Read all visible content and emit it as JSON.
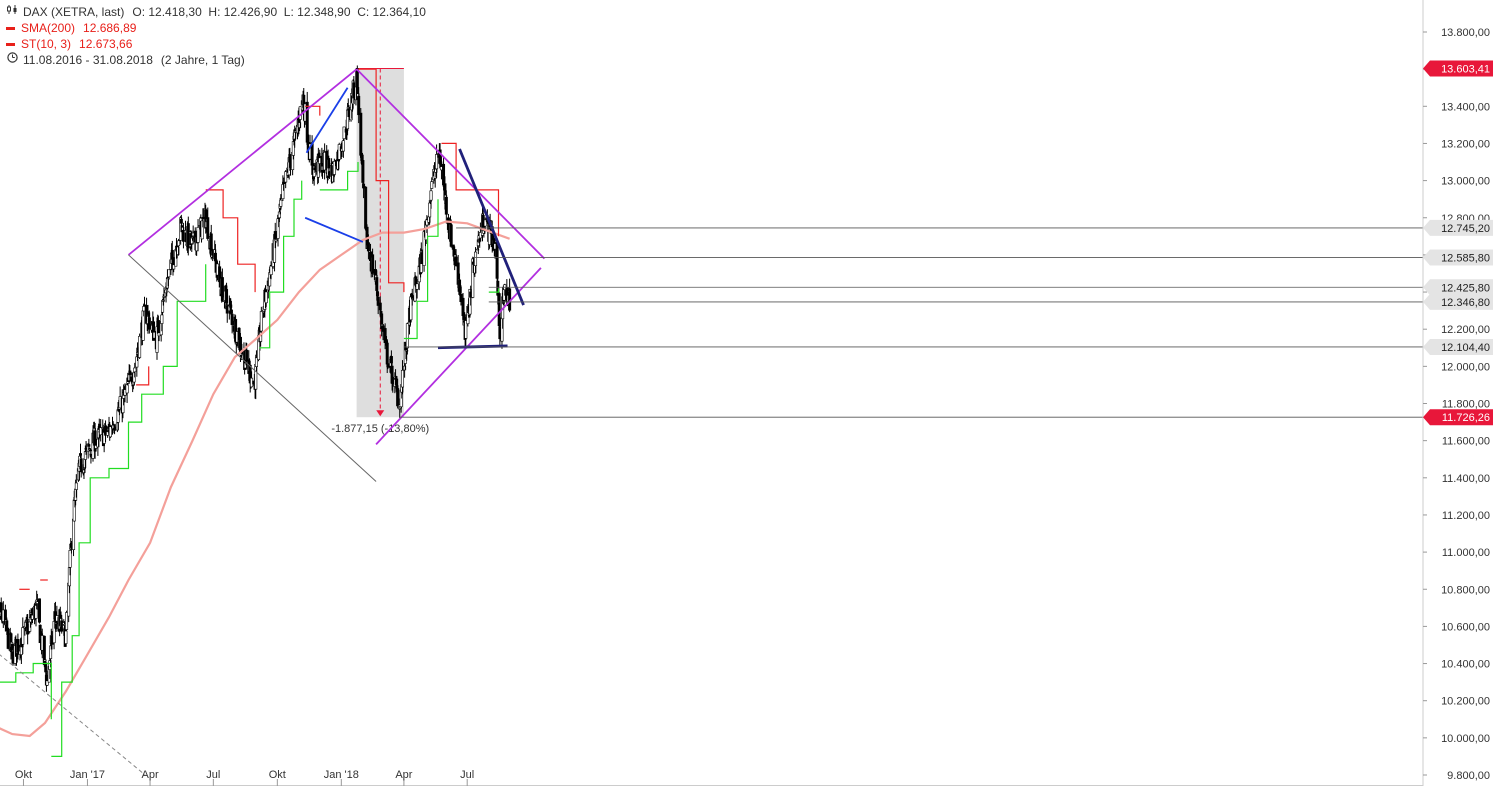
{
  "legend": {
    "title_icon": "candlestick-icon",
    "title": "DAX (XETRA, last)",
    "ohlc": "O: 12.418,30  H: 12.426,90  L: 12.348,90  C: 12.364,10",
    "sma_label": "SMA(200)",
    "sma_value": "12.686,89",
    "st_label": "ST(10, 3)",
    "st_value": "12.673,66",
    "range_icon": "clock-icon",
    "range": "11.08.2016 - 31.08.2018",
    "range_detail": "(2 Jahre, 1 Tag)"
  },
  "colors": {
    "sma": "#f4a09a",
    "st_up": "#22dd22",
    "st_down": "#ee2222",
    "candle": "#000000",
    "triangle": "#b22fe0",
    "dark_line": "#20207a",
    "blue_line": "#1a3fe8",
    "measure_box": "#d8d8d8",
    "tag_red": "#e8173a",
    "tag_gray": "#e4e4e4"
  },
  "measurement_label": "-1.877,15 (-13,80%)",
  "chart_data": {
    "type": "candlestick",
    "title": "DAX (XETRA, last)",
    "xlabel": "",
    "ylabel": "",
    "ylim": [
      9800,
      13800
    ],
    "y_ticks": [
      "13.800,00",
      "13.600,00",
      "13.400,00",
      "13.200,00",
      "13.000,00",
      "12.800,00",
      "12.600,00",
      "12.400,00",
      "12.200,00",
      "12.000,00",
      "11.800,00",
      "11.600,00",
      "11.400,00",
      "11.200,00",
      "11.000,00",
      "10.800,00",
      "10.600,00",
      "10.400,00",
      "10.200,00",
      "10.000,00",
      "9.800,00"
    ],
    "y_tick_values": [
      13800,
      13600,
      13400,
      13200,
      13000,
      12800,
      12600,
      12400,
      12200,
      12000,
      11800,
      11600,
      11400,
      11200,
      11000,
      10800,
      10600,
      10400,
      10200,
      10000,
      9800
    ],
    "x_ticks": [
      "Okt",
      "Jan '17",
      "Apr",
      "Jul",
      "Okt",
      "Jan '18",
      "Apr",
      "Jul"
    ],
    "x_tick_dates": [
      "2016-10-01",
      "2017-01-01",
      "2017-04-01",
      "2017-07-01",
      "2017-10-01",
      "2018-01-01",
      "2018-04-01",
      "2018-07-01"
    ],
    "date_range": [
      "2016-08-11",
      "2018-08-31"
    ],
    "price_path": [
      [
        "2016-08-11",
        10700
      ],
      [
        "2016-09-01",
        10650
      ],
      [
        "2016-09-15",
        10450
      ],
      [
        "2016-10-01",
        10550
      ],
      [
        "2016-10-20",
        10700
      ],
      [
        "2016-11-04",
        10300
      ],
      [
        "2016-11-15",
        10650
      ],
      [
        "2016-12-01",
        10550
      ],
      [
        "2016-12-10",
        11150
      ],
      [
        "2016-12-20",
        11450
      ],
      [
        "2017-01-10",
        11600
      ],
      [
        "2017-02-01",
        11650
      ],
      [
        "2017-02-20",
        11800
      ],
      [
        "2017-03-10",
        12000
      ],
      [
        "2017-03-25",
        12300
      ],
      [
        "2017-04-10",
        12150
      ],
      [
        "2017-04-25",
        12450
      ],
      [
        "2017-05-15",
        12750
      ],
      [
        "2017-06-01",
        12650
      ],
      [
        "2017-06-20",
        12800
      ],
      [
        "2017-07-10",
        12450
      ],
      [
        "2017-07-25",
        12300
      ],
      [
        "2017-08-10",
        12100
      ],
      [
        "2017-08-29",
        11900
      ],
      [
        "2017-09-10",
        12300
      ],
      [
        "2017-09-25",
        12600
      ],
      [
        "2017-10-10",
        12950
      ],
      [
        "2017-10-25",
        13200
      ],
      [
        "2017-11-07",
        13450
      ],
      [
        "2017-11-20",
        13050
      ],
      [
        "2017-12-05",
        13100
      ],
      [
        "2017-12-20",
        13050
      ],
      [
        "2018-01-05",
        13250
      ],
      [
        "2018-01-23",
        13560
      ],
      [
        "2018-02-05",
        12700
      ],
      [
        "2018-02-20",
        12450
      ],
      [
        "2018-03-05",
        12100
      ],
      [
        "2018-03-26",
        11800
      ],
      [
        "2018-04-10",
        12300
      ],
      [
        "2018-04-25",
        12550
      ],
      [
        "2018-05-10",
        12950
      ],
      [
        "2018-05-22",
        13150
      ],
      [
        "2018-06-05",
        12750
      ],
      [
        "2018-06-20",
        12450
      ],
      [
        "2018-06-28",
        12150
      ],
      [
        "2018-07-10",
        12550
      ],
      [
        "2018-07-25",
        12800
      ],
      [
        "2018-08-10",
        12650
      ],
      [
        "2018-08-17",
        12200
      ],
      [
        "2018-08-24",
        12400
      ],
      [
        "2018-08-31",
        12364
      ]
    ],
    "sma200": [
      [
        "2016-08-11",
        10080
      ],
      [
        "2016-09-15",
        10020
      ],
      [
        "2016-10-10",
        10010
      ],
      [
        "2016-11-01",
        10080
      ],
      [
        "2016-12-01",
        10250
      ],
      [
        "2017-01-01",
        10450
      ],
      [
        "2017-02-01",
        10650
      ],
      [
        "2017-03-01",
        10850
      ],
      [
        "2017-04-01",
        11050
      ],
      [
        "2017-05-01",
        11350
      ],
      [
        "2017-06-01",
        11600
      ],
      [
        "2017-07-01",
        11850
      ],
      [
        "2017-08-01",
        12050
      ],
      [
        "2017-09-01",
        12150
      ],
      [
        "2017-10-01",
        12250
      ],
      [
        "2017-11-01",
        12400
      ],
      [
        "2017-12-01",
        12520
      ],
      [
        "2018-01-01",
        12600
      ],
      [
        "2018-02-01",
        12680
      ],
      [
        "2018-03-01",
        12720
      ],
      [
        "2018-04-01",
        12720
      ],
      [
        "2018-05-01",
        12740
      ],
      [
        "2018-06-01",
        12780
      ],
      [
        "2018-07-01",
        12770
      ],
      [
        "2018-08-31",
        12686.89
      ]
    ],
    "supertrend": {
      "up": [
        [
          [
            "2016-08-11",
            10300
          ],
          [
            "2016-09-20",
            10350
          ],
          [
            "2016-10-15",
            10400
          ],
          [
            "2016-11-10",
            10100
          ]
        ],
        [
          [
            "2016-11-10",
            9900
          ],
          [
            "2016-11-25",
            10300
          ],
          [
            "2016-12-10",
            10550
          ],
          [
            "2016-12-20",
            11050
          ],
          [
            "2017-01-05",
            11400
          ],
          [
            "2017-02-01",
            11450
          ],
          [
            "2017-03-01",
            11700
          ],
          [
            "2017-03-20",
            11850
          ],
          [
            "2017-04-20",
            12000
          ],
          [
            "2017-05-10",
            12350
          ],
          [
            "2017-06-20",
            12550
          ]
        ],
        [
          [
            "2017-09-05",
            12100
          ],
          [
            "2017-09-20",
            12400
          ],
          [
            "2017-10-10",
            12700
          ],
          [
            "2017-10-25",
            12900
          ],
          [
            "2017-11-05",
            13000
          ]
        ],
        [
          [
            "2017-12-01",
            12950
          ],
          [
            "2018-01-10",
            13050
          ],
          [
            "2018-01-25",
            13100
          ]
        ],
        [
          [
            "2018-04-01",
            12150
          ],
          [
            "2018-04-20",
            12350
          ],
          [
            "2018-05-05",
            12700
          ],
          [
            "2018-05-20",
            12900
          ]
        ],
        [
          [
            "2018-08-01",
            12400
          ],
          [
            "2018-08-15",
            12420
          ]
        ]
      ],
      "down": [
        [
          [
            "2016-09-25",
            10800
          ],
          [
            "2016-10-10",
            10800
          ]
        ],
        [
          [
            "2016-10-25",
            10850
          ],
          [
            "2016-11-05",
            10850
          ]
        ],
        [
          [
            "2017-03-12",
            11900
          ],
          [
            "2017-03-30",
            12000
          ]
        ],
        [
          [
            "2017-06-20",
            12950
          ],
          [
            "2017-07-15",
            12800
          ],
          [
            "2017-08-05",
            12550
          ],
          [
            "2017-08-30",
            12400
          ]
        ],
        [
          [
            "2017-11-10",
            13400
          ],
          [
            "2017-12-01",
            13350
          ]
        ],
        [
          [
            "2018-01-25",
            13600
          ],
          [
            "2018-02-20",
            13000
          ],
          [
            "2018-03-10",
            12450
          ],
          [
            "2018-04-01",
            12400
          ]
        ],
        [
          [
            "2018-05-25",
            13200
          ],
          [
            "2018-06-15",
            12950
          ],
          [
            "2018-07-20",
            12950
          ],
          [
            "2018-08-15",
            12700
          ]
        ]
      ]
    },
    "trendlines": [
      {
        "kind": "triangle",
        "from": [
          "2017-03-01",
          12600
        ],
        "to": [
          "2018-01-23",
          13600
        ]
      },
      {
        "kind": "triangle",
        "from": [
          "2018-01-23",
          13600
        ],
        "to": [
          "2018-10-20",
          12580
        ]
      },
      {
        "kind": "triangle",
        "from": [
          "2018-02-20",
          11580
        ],
        "to": [
          "2018-10-15",
          12530
        ]
      },
      {
        "kind": "channel",
        "from": [
          "2017-03-01",
          12600
        ],
        "to": [
          "2018-02-20",
          11380
        ]
      },
      {
        "kind": "channel-dashed",
        "from": [
          "2016-08-11",
          10500
        ],
        "to": [
          "2017-03-25",
          9800
        ]
      },
      {
        "kind": "blue",
        "from": [
          "2017-11-12",
          13150
        ],
        "to": [
          "2018-01-10",
          13500
        ]
      },
      {
        "kind": "blue",
        "from": [
          "2017-11-10",
          12800
        ],
        "to": [
          "2018-02-01",
          12670
        ]
      },
      {
        "kind": "dark",
        "from": [
          "2018-06-20",
          13170
        ],
        "to": [
          "2018-09-20",
          12330
        ]
      },
      {
        "kind": "dark",
        "from": [
          "2018-05-20",
          12100
        ],
        "to": [
          "2018-08-28",
          12110
        ]
      }
    ],
    "measurement": {
      "start": [
        "2018-01-23",
        13603.41
      ],
      "end": [
        "2018-03-26",
        11726.26
      ],
      "label": "-1.877,15 (-13,80%)"
    },
    "hlines": [
      {
        "value": 12745.2,
        "label": "12.745,20",
        "from": "2018-06-15",
        "style": "gray"
      },
      {
        "value": 12585.8,
        "label": "12.585,80",
        "from": "2018-07-10",
        "style": "gray"
      },
      {
        "value": 12425.8,
        "label": "12.425,80",
        "from": "2018-08-01",
        "style": "gray"
      },
      {
        "value": 12346.8,
        "label": "12.346,80",
        "from": "2018-08-01",
        "style": "gray"
      },
      {
        "value": 12104.4,
        "label": "12.104,40",
        "from": "2018-04-01",
        "style": "gray"
      },
      {
        "value": 11726.26,
        "label": "11.726,26",
        "from": "2018-03-26",
        "style": "red"
      },
      {
        "value": 13603.41,
        "label": "13.603,41",
        "from": "2018-08-31",
        "style": "red"
      }
    ]
  }
}
